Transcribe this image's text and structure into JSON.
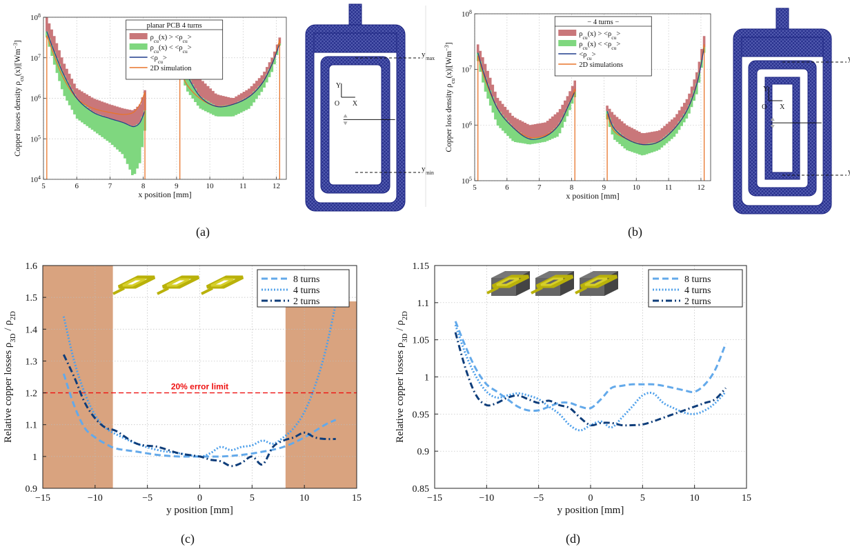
{
  "captions": {
    "a": "(a)",
    "b": "(b)",
    "c": "(c)",
    "d": "(d)"
  },
  "colors": {
    "upper_band": "#c9777a",
    "lower_band": "#7fd77f",
    "mean_line": "#1f3c8c",
    "sim_line": "#e8742a",
    "mesh": "#1c2480",
    "shade": "#d9a37f",
    "error_line": "#ee1111",
    "s8": "#63a9ea",
    "s4": "#4fa0ea",
    "s2": "#0e3d7a"
  },
  "mesh_labels": {
    "ymax": "y",
    "ymax_sub": "max",
    "ymin": "y",
    "ymin_sub": "min",
    "axis_y": "Y",
    "axis_x": "X",
    "origin": "O"
  },
  "chart_data": [
    {
      "id": "a",
      "type": "area",
      "yscale": "log",
      "xlabel": "x position [mm]",
      "ylabel_main": "Copper losses density ρ",
      "ylabel_sub": "cu",
      "ylabel_tail": "(x)|[Wm",
      "ylabel_sup": "−3",
      "ylabel_end": "]",
      "xlim": [
        5,
        12.3
      ],
      "ylim_exp": [
        4,
        8
      ],
      "xticks": [
        "5",
        "6",
        "7",
        "8",
        "9",
        "10",
        "11",
        "12"
      ],
      "yticks": [
        "10",
        "10",
        "10",
        "10",
        "10"
      ],
      "ytick_exps": [
        "4",
        "5",
        "6",
        "7",
        "8"
      ],
      "legend_title": "planar PCB 4 turns",
      "legend": [
        {
          "kind": "band",
          "color": "upper_band",
          "text": "ρ",
          "sub": "cu",
          "tail": "(x) > <ρ",
          "sub2": "cu",
          "end": ">"
        },
        {
          "kind": "band",
          "color": "lower_band",
          "text": "ρ",
          "sub": "cu",
          "tail": "(x) < <ρ",
          "sub2": "cu",
          "end": ">"
        },
        {
          "kind": "line",
          "color": "mean_line",
          "text": "<ρ",
          "sub": "cu",
          "tail": ">",
          "sub2": "",
          "end": ""
        },
        {
          "kind": "line",
          "color": "sim_line",
          "text": "2D simulation",
          "sub": "",
          "tail": "",
          "sub2": "",
          "end": ""
        }
      ],
      "segments": [
        {
          "x": [
            5.1,
            5.3,
            5.6,
            6.0,
            6.5,
            7.0,
            7.4,
            7.7,
            7.9,
            8.05
          ],
          "mean": [
            7.65,
            7.2,
            6.6,
            6.0,
            5.65,
            5.5,
            5.4,
            5.3,
            5.4,
            5.7
          ],
          "upper": [
            8.0,
            7.6,
            6.9,
            6.25,
            6.0,
            5.85,
            5.75,
            5.7,
            5.85,
            6.2
          ],
          "lower": [
            7.5,
            6.9,
            6.1,
            5.5,
            5.2,
            4.9,
            4.6,
            4.05,
            4.4,
            5.2
          ],
          "sim": [
            7.55,
            7.1,
            6.5,
            6.0,
            5.75,
            5.65,
            5.6,
            5.65,
            5.85,
            6.15
          ]
        },
        {
          "x": [
            9.1,
            9.3,
            9.7,
            10.2,
            10.7,
            11.2,
            11.6,
            11.9,
            12.1
          ],
          "mean": [
            7.0,
            6.6,
            6.05,
            5.8,
            5.85,
            6.05,
            6.4,
            6.9,
            7.35
          ],
          "upper": [
            7.3,
            7.0,
            6.5,
            6.1,
            6.0,
            6.25,
            6.6,
            7.05,
            7.5
          ],
          "lower": [
            6.7,
            6.2,
            5.75,
            5.55,
            5.55,
            5.75,
            6.2,
            6.7,
            7.3
          ],
          "sim": [
            6.75,
            6.35,
            6.0,
            5.8,
            5.85,
            6.05,
            6.4,
            6.9,
            7.45
          ]
        }
      ]
    },
    {
      "id": "b",
      "type": "area",
      "yscale": "log",
      "xlabel": "x position [mm]",
      "ylabel_main": "Copper loss density ρ",
      "ylabel_sub": "cu",
      "ylabel_tail": "(x)|[Wm",
      "ylabel_sup": "−3",
      "ylabel_end": "]",
      "xlim": [
        5,
        12.3
      ],
      "ylim_exp": [
        5,
        8
      ],
      "xticks": [
        "5",
        "6",
        "7",
        "8",
        "9",
        "10",
        "11",
        "12"
      ],
      "yticks": [
        "10",
        "10",
        "10",
        "10"
      ],
      "ytick_exps": [
        "5",
        "6",
        "7",
        "8"
      ],
      "legend_title": "− 4 turns −",
      "legend": [
        {
          "kind": "band",
          "color": "upper_band",
          "text": "ρ",
          "sub": "cu",
          "tail": "(x) > <ρ",
          "sub2": "cu",
          "end": ">"
        },
        {
          "kind": "band",
          "color": "lower_band",
          "text": "ρ",
          "sub": "cu",
          "tail": "(x) < <ρ",
          "sub2": "cu",
          "end": ">"
        },
        {
          "kind": "line",
          "color": "mean_line",
          "text": "<ρ",
          "sub": "cu",
          "tail": ">",
          "sub2": "",
          "end": ""
        },
        {
          "kind": "line",
          "color": "sim_line",
          "text": "2D simulations",
          "sub": "",
          "tail": "",
          "sub2": "",
          "end": ""
        }
      ],
      "segments": [
        {
          "x": [
            5.1,
            5.3,
            5.7,
            6.2,
            6.7,
            7.2,
            7.6,
            7.9,
            8.1
          ],
          "mean": [
            7.3,
            6.9,
            6.3,
            5.95,
            5.75,
            5.8,
            6.0,
            6.35,
            6.6
          ],
          "upper": [
            7.45,
            7.15,
            6.5,
            6.15,
            6.0,
            6.05,
            6.25,
            6.55,
            6.8
          ],
          "lower": [
            7.15,
            6.65,
            6.0,
            5.7,
            5.65,
            5.7,
            5.8,
            6.2,
            6.5
          ],
          "sim": [
            7.25,
            6.85,
            6.3,
            5.95,
            5.78,
            5.82,
            6.0,
            6.35,
            6.65
          ]
        },
        {
          "x": [
            9.1,
            9.3,
            9.7,
            10.2,
            10.7,
            11.2,
            11.6,
            11.9,
            12.1
          ],
          "mean": [
            6.25,
            5.95,
            5.75,
            5.65,
            5.7,
            5.95,
            6.3,
            6.8,
            7.4
          ],
          "upper": [
            6.35,
            6.2,
            6.0,
            5.85,
            5.9,
            6.15,
            6.5,
            7.0,
            7.6
          ],
          "lower": [
            6.1,
            5.75,
            5.55,
            5.45,
            5.55,
            5.8,
            6.15,
            6.6,
            7.3
          ],
          "sim": [
            6.2,
            5.9,
            5.75,
            5.65,
            5.7,
            5.95,
            6.3,
            6.8,
            7.45
          ]
        }
      ]
    },
    {
      "id": "c",
      "type": "line",
      "xlabel": "y position [mm]",
      "ylabel_main": "Relative copper losses ρ",
      "ylabel_sub": "3D",
      "ylabel_mid": " / ρ",
      "ylabel_sub2": "2D",
      "xlim": [
        -15,
        15
      ],
      "ylim": [
        0.9,
        1.6
      ],
      "xticks": [
        -15,
        -10,
        -5,
        0,
        5,
        10,
        15
      ],
      "yticks": [
        0.9,
        1,
        1.1,
        1.2,
        1.3,
        1.4,
        1.5,
        1.6
      ],
      "shaded": [
        [
          -15,
          -8.3
        ],
        [
          8.2,
          15
        ]
      ],
      "hline": {
        "y": 1.2,
        "label": "20% error limit"
      },
      "series": [
        {
          "name": "8 turns",
          "dash": "dash",
          "color": "s8",
          "x": [
            -13,
            -12,
            -11,
            -10,
            -9,
            -8,
            -6,
            -4,
            -2,
            0,
            2,
            4,
            6,
            8,
            10,
            12,
            13
          ],
          "y": [
            1.26,
            1.16,
            1.09,
            1.06,
            1.04,
            1.025,
            1.015,
            1.005,
            1.0,
            1.0,
            1.0,
            1.005,
            1.015,
            1.03,
            1.06,
            1.1,
            1.115
          ]
        },
        {
          "name": "4 turns",
          "dash": "dot",
          "color": "s4",
          "x": [
            -13,
            -12,
            -11,
            -10,
            -9,
            -8,
            -6,
            -4,
            -2,
            0,
            1,
            2,
            3,
            4,
            5,
            6,
            7,
            8,
            9,
            10,
            11,
            12,
            13
          ],
          "y": [
            1.44,
            1.3,
            1.2,
            1.13,
            1.09,
            1.07,
            1.04,
            1.02,
            1.01,
            1.0,
            1.01,
            1.03,
            1.02,
            1.03,
            1.035,
            1.05,
            1.04,
            1.06,
            1.09,
            1.14,
            1.22,
            1.33,
            1.48
          ]
        },
        {
          "name": "2 turns",
          "dash": "dashdot",
          "color": "s2",
          "x": [
            -13,
            -12,
            -11,
            -10,
            -9,
            -8,
            -6,
            -4,
            -2,
            0,
            1,
            2,
            3,
            4,
            5,
            6,
            7,
            8,
            9,
            10,
            11,
            12,
            13
          ],
          "y": [
            1.32,
            1.25,
            1.17,
            1.12,
            1.09,
            1.08,
            1.04,
            1.03,
            1.01,
            1.0,
            0.99,
            0.985,
            0.97,
            0.98,
            1.0,
            0.975,
            1.03,
            1.05,
            1.06,
            1.075,
            1.06,
            1.055,
            1.055
          ]
        }
      ]
    },
    {
      "id": "d",
      "type": "line",
      "xlabel": "y position [mm]",
      "ylabel_main": "Relative copper losses ρ",
      "ylabel_sub": "3D",
      "ylabel_mid": " / ρ",
      "ylabel_sub2": "2D",
      "xlim": [
        -15,
        15
      ],
      "ylim": [
        0.85,
        1.15
      ],
      "xticks": [
        -15,
        -10,
        -5,
        0,
        5,
        10,
        15
      ],
      "yticks": [
        0.85,
        0.9,
        0.95,
        1,
        1.05,
        1.1,
        1.15
      ],
      "series": [
        {
          "name": "8 turns",
          "dash": "dash",
          "color": "s8",
          "x": [
            -13,
            -12,
            -11,
            -10,
            -9,
            -8,
            -7,
            -6,
            -5,
            -4,
            -3,
            -2,
            -1,
            0,
            1,
            2,
            3,
            4,
            5,
            6,
            7,
            8,
            9,
            10,
            11,
            12,
            13
          ],
          "y": [
            1.075,
            1.04,
            1.01,
            0.99,
            0.98,
            0.97,
            0.96,
            0.955,
            0.955,
            0.96,
            0.965,
            0.965,
            0.96,
            0.958,
            0.97,
            0.985,
            0.988,
            0.99,
            0.99,
            0.99,
            0.988,
            0.985,
            0.982,
            0.98,
            0.99,
            1.01,
            1.045
          ]
        },
        {
          "name": "4 turns",
          "dash": "dot",
          "color": "s4",
          "x": [
            -13,
            -12,
            -11,
            -10,
            -9,
            -8,
            -7,
            -6,
            -5,
            -4,
            -3,
            -2,
            -1,
            0,
            1,
            2,
            3,
            4,
            5,
            6,
            7,
            8,
            9,
            10,
            11,
            12,
            13
          ],
          "y": [
            1.07,
            1.03,
            1.0,
            0.98,
            0.972,
            0.975,
            0.978,
            0.975,
            0.97,
            0.96,
            0.95,
            0.935,
            0.928,
            0.935,
            0.94,
            0.932,
            0.945,
            0.96,
            0.975,
            0.978,
            0.965,
            0.958,
            0.952,
            0.95,
            0.955,
            0.965,
            0.98
          ]
        },
        {
          "name": "2 turns",
          "dash": "dashdot",
          "color": "s2",
          "x": [
            -13,
            -12,
            -11,
            -10,
            -9,
            -8,
            -7,
            -6,
            -5,
            -4,
            -3,
            -2,
            -1,
            0,
            1,
            2,
            3,
            4,
            5,
            6,
            7,
            8,
            9,
            10,
            11,
            12,
            13
          ],
          "y": [
            1.06,
            1.01,
            0.975,
            0.962,
            0.965,
            0.972,
            0.975,
            0.97,
            0.965,
            0.968,
            0.962,
            0.958,
            0.945,
            0.935,
            0.938,
            0.938,
            0.935,
            0.935,
            0.936,
            0.94,
            0.945,
            0.95,
            0.955,
            0.96,
            0.965,
            0.97,
            0.985
          ]
        }
      ]
    }
  ]
}
